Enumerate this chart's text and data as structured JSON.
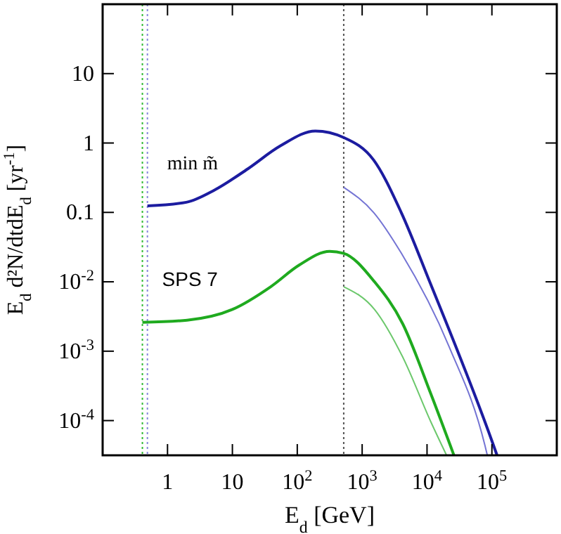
{
  "chart_data": {
    "type": "line",
    "xlabel": "E$_{d}$ [GeV]",
    "ylabel": "E$_{d}$ d²N/dtdE$_{d}$ [yr$^{-1}$]",
    "log": "xy",
    "xlim": [
      0.1,
      1000000
    ],
    "ylim": [
      3.16e-05,
      100
    ],
    "xticks": [
      1,
      10,
      {
        "value": 100,
        "label": "10$^{2}$"
      },
      {
        "value": 1000,
        "label": "10$^{3}$"
      },
      {
        "value": 10000,
        "label": "10$^{4}$"
      },
      {
        "value": 100000,
        "label": "10$^{5}$"
      }
    ],
    "yticks": [
      {
        "value": 0.0001,
        "label": "10$^{-4}$"
      },
      {
        "value": 0.001,
        "label": "10$^{-3}$"
      },
      {
        "value": 0.01,
        "label": "10$^{-2}$"
      },
      0.1,
      1,
      10
    ],
    "grid": false,
    "marker": "none",
    "line_style": "solid",
    "series": [
      {
        "name": "min m̃",
        "color": "#1c1ca0",
        "x": [
          0.49,
          1.95,
          5.3,
          17,
          55,
          190,
          520,
          1500,
          4000,
          11000,
          100000,
          120000
        ],
        "values": [
          0.124,
          0.14,
          0.21,
          0.42,
          0.91,
          1.49,
          1.2,
          0.57,
          0.1,
          0.01,
          5.1e-05,
          3.16e-05
        ]
      },
      {
        "color": "#7474d4",
        "x": [
          520,
          1500,
          4000,
          22000,
          78000,
          85000
        ],
        "values": [
          0.23,
          0.1,
          0.026,
          0.00115,
          4.4e-05,
          3.16e-05
        ]
      },
      {
        "name": "SPS 7",
        "color": "#1faa1f",
        "x": [
          0.41,
          2,
          10,
          39,
          107,
          316,
          520,
          1550,
          4200,
          11500,
          26000
        ],
        "values": [
          0.0026,
          0.0028,
          0.004,
          0.0085,
          0.0174,
          0.0275,
          0.0257,
          0.01,
          0.0025,
          0.00024,
          3.16e-05
        ]
      },
      {
        "color": "#6cc86c",
        "x": [
          520,
          1550,
          4200,
          11500,
          20000
        ],
        "values": [
          0.0085,
          0.004,
          0.00083,
          9.5e-05,
          3.16e-05
        ]
      }
    ],
    "ref_lines": [
      {
        "axis": "x",
        "value": 0.41,
        "color": "#33bb33",
        "line_style": "dotted"
      },
      {
        "axis": "x",
        "value": 0.49,
        "color": "#8888dd",
        "line_style": "dotted"
      },
      {
        "axis": "x",
        "value": 520,
        "color": "#555555",
        "line_style": "dotted"
      }
    ]
  }
}
